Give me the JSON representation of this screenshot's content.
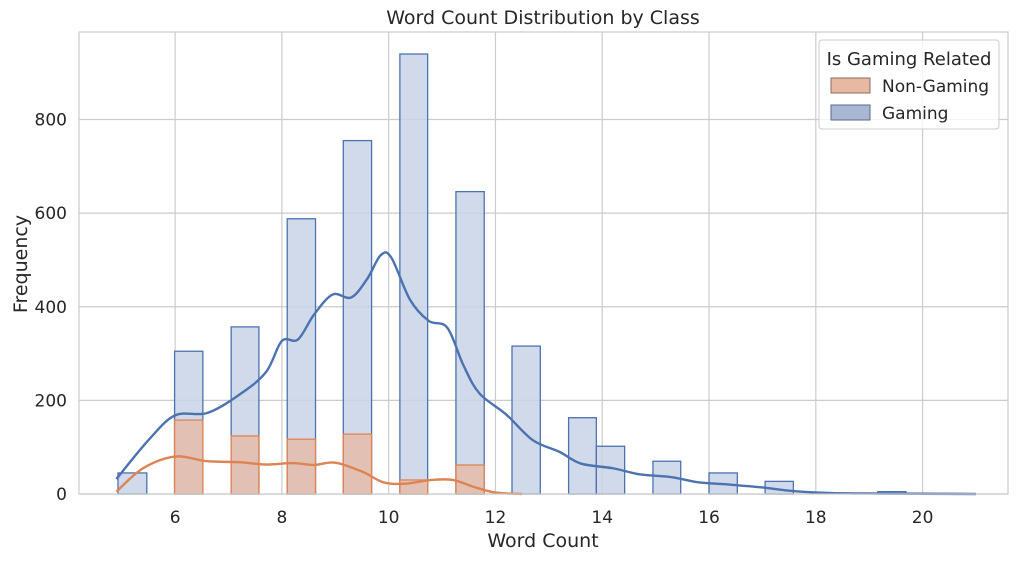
{
  "chart_data": {
    "type": "histogram",
    "title": "Word Count Distribution by Class",
    "xlabel": "Word Count",
    "ylabel": "Frequency",
    "xlim": [
      4.2,
      21.6
    ],
    "ylim": [
      0,
      987
    ],
    "xticks": [
      6,
      8,
      10,
      12,
      14,
      16,
      18,
      20
    ],
    "yticks": [
      0,
      200,
      400,
      600,
      800
    ],
    "grid": true,
    "legend": {
      "title": "Is Gaming Related",
      "placement": "top-right",
      "entries": [
        "Non-Gaming",
        "Gaming"
      ]
    },
    "bins": [
      [
        4.93,
        5.47
      ],
      [
        5.47,
        6.0
      ],
      [
        5.99,
        6.52
      ],
      [
        6.52,
        7.05
      ],
      [
        7.05,
        7.57
      ],
      [
        7.57,
        8.1
      ],
      [
        8.1,
        8.63
      ],
      [
        8.63,
        9.15
      ],
      [
        9.15,
        9.68
      ],
      [
        9.68,
        10.21
      ],
      [
        10.21,
        10.73
      ],
      [
        10.73,
        11.26
      ],
      [
        11.26,
        11.79
      ],
      [
        11.79,
        12.31
      ],
      [
        12.31,
        12.84
      ],
      [
        12.84,
        13.37
      ],
      [
        13.37,
        13.89
      ],
      [
        13.89,
        14.42
      ],
      [
        14.42,
        14.95
      ],
      [
        14.95,
        15.47
      ],
      [
        15.47,
        16.0
      ],
      [
        16.0,
        16.53
      ],
      [
        16.53,
        17.05
      ],
      [
        17.05,
        17.58
      ],
      [
        17.58,
        18.11
      ],
      [
        18.11,
        18.63
      ],
      [
        18.63,
        19.16
      ],
      [
        19.16,
        19.69
      ],
      [
        19.69,
        20.21
      ],
      [
        20.21,
        20.74
      ]
    ],
    "series": [
      {
        "name": "Gaming",
        "color": "#4c72b0",
        "fill": "#c8d3e6",
        "values": [
          45,
          0,
          305,
          0,
          357,
          0,
          588,
          0,
          755,
          0,
          940,
          0,
          646,
          0,
          316,
          0,
          163,
          102,
          0,
          70,
          0,
          45,
          0,
          27,
          0,
          0,
          0,
          5,
          0,
          1
        ],
        "kde": [
          [
            4.9,
            32
          ],
          [
            5.5,
            115
          ],
          [
            6.0,
            168
          ],
          [
            6.6,
            173
          ],
          [
            7.2,
            212
          ],
          [
            7.7,
            260
          ],
          [
            8.0,
            327
          ],
          [
            8.3,
            330
          ],
          [
            8.6,
            383
          ],
          [
            8.95,
            426
          ],
          [
            9.3,
            420
          ],
          [
            9.6,
            460
          ],
          [
            9.85,
            510
          ],
          [
            10.05,
            505
          ],
          [
            10.4,
            415
          ],
          [
            10.75,
            370
          ],
          [
            11.1,
            355
          ],
          [
            11.4,
            275
          ],
          [
            11.7,
            215
          ],
          [
            12.2,
            170
          ],
          [
            12.7,
            115
          ],
          [
            13.2,
            90
          ],
          [
            13.6,
            65
          ],
          [
            14.2,
            55
          ],
          [
            14.7,
            42
          ],
          [
            15.3,
            36
          ],
          [
            15.8,
            25
          ],
          [
            16.4,
            20
          ],
          [
            17.0,
            14
          ],
          [
            17.6,
            6
          ],
          [
            18.3,
            2
          ],
          [
            19.3,
            1
          ],
          [
            21.0,
            0
          ]
        ]
      },
      {
        "name": "Non-Gaming",
        "color": "#dd8452",
        "fill": "#e8b8a2",
        "values": [
          0,
          0,
          158,
          0,
          124,
          0,
          117,
          0,
          128,
          0,
          30,
          0,
          62,
          0,
          0,
          0,
          0,
          0,
          0,
          0,
          0,
          0,
          0,
          0,
          0,
          0,
          0,
          0,
          0,
          0
        ],
        "kde": [
          [
            4.9,
            5
          ],
          [
            5.4,
            55
          ],
          [
            6.0,
            80
          ],
          [
            6.6,
            70
          ],
          [
            7.2,
            68
          ],
          [
            7.7,
            63
          ],
          [
            8.2,
            66
          ],
          [
            8.6,
            62
          ],
          [
            9.0,
            67
          ],
          [
            9.5,
            48
          ],
          [
            9.9,
            25
          ],
          [
            10.3,
            22
          ],
          [
            10.8,
            30
          ],
          [
            11.2,
            30
          ],
          [
            11.6,
            15
          ],
          [
            12.0,
            3
          ],
          [
            12.5,
            0
          ]
        ]
      }
    ]
  }
}
